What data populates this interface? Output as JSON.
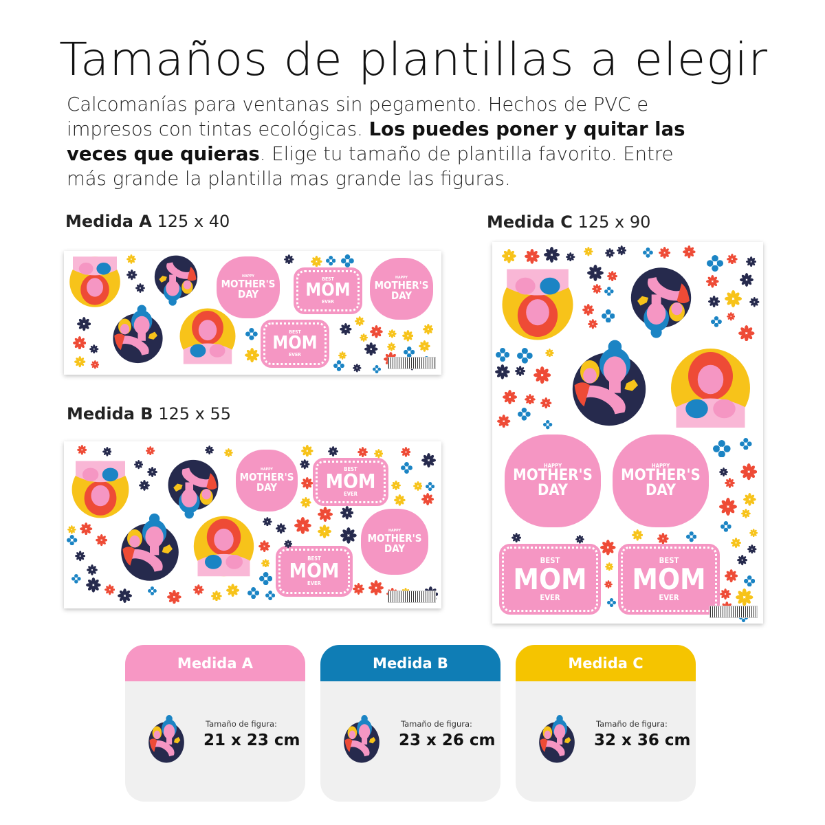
{
  "title": "Tamaños de plantillas a elegir",
  "description": {
    "part1": "Calcomanías para ventanas sin pegamento. Hechos de PVC e impresos con tintas ecológicas. ",
    "bold": "Los puedes poner y quitar las veces que quieras",
    "part2": ". Elige tu tamaño de plantilla favorito. Entre más grande la plantilla mas grande las figuras."
  },
  "sheets": [
    {
      "name": "Medida A",
      "dims": "125 x 40"
    },
    {
      "name": "Medida B",
      "dims": "125 x 55"
    },
    {
      "name": "Medida C",
      "dims": "125 x 90"
    }
  ],
  "sticker_text": {
    "happy": "HAPPY",
    "mothers_day_1": "MOTHER'S",
    "mothers_day_2": "DAY",
    "best": "BEST",
    "mom": "MOM",
    "ever": "EVER"
  },
  "cards": [
    {
      "header": "Medida A",
      "caption": "Tamaño de figura:",
      "size": "21 x 23 cm",
      "color": "#f797c4"
    },
    {
      "header": "Medida B",
      "caption": "Tamaño de figura:",
      "size": "23 x 26 cm",
      "color": "#0f7db5"
    },
    {
      "header": "Medida C",
      "caption": "Tamaño de figura:",
      "size": "32 x 36 cm",
      "color": "#f5c400"
    }
  ],
  "palette": {
    "pink": "#f596c3",
    "navy": "#262a4d",
    "red": "#ee4b36",
    "yellow": "#f7c31a",
    "blue": "#1b84c4"
  }
}
